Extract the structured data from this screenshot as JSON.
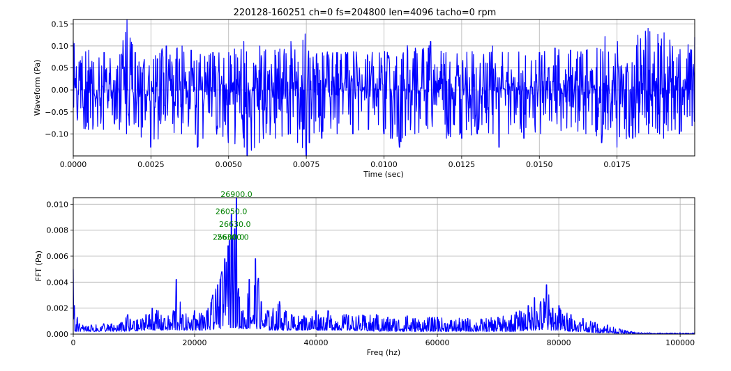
{
  "chart_data": [
    {
      "type": "line",
      "title": "220128-160251 ch=0 fs=204800 len=4096 tacho=0 rpm",
      "xlabel": "Time (sec)",
      "ylabel": "Waveform (Pa)",
      "xlim": [
        0,
        0.02
      ],
      "ylim": [
        -0.15,
        0.16
      ],
      "xticks": [
        "0.0000",
        "0.0025",
        "0.0050",
        "0.0075",
        "0.0100",
        "0.0125",
        "0.0150",
        "0.0175"
      ],
      "yticks": [
        "−0.10",
        "−0.05",
        "0.00",
        "0.05",
        "0.10",
        "0.15"
      ],
      "grid": true,
      "color": "#0000ff",
      "series": [
        {
          "x": [
            0,
            0.0005,
            0.001,
            0.0015,
            0.00172,
            0.002,
            0.0025,
            0.003,
            0.0035,
            0.0038,
            0.004,
            0.0045,
            0.005,
            0.0055,
            0.0056,
            0.006,
            0.0065,
            0.007,
            0.0075,
            0.0076,
            0.008,
            0.0085,
            0.009,
            0.0095,
            0.01,
            0.0105,
            0.011,
            0.0115,
            0.012,
            0.0125,
            0.013,
            0.0135,
            0.0137,
            0.014,
            0.0145,
            0.015,
            0.0155,
            0.016,
            0.0165,
            0.017,
            0.0175,
            0.018,
            0.0185,
            0.019,
            0.0195,
            0.02
          ],
          "upper": [
            0.11,
            0.09,
            0.085,
            0.08,
            0.16,
            0.085,
            0.08,
            0.1,
            0.1,
            0.09,
            0.08,
            0.085,
            0.085,
            0.11,
            0.08,
            0.1,
            0.09,
            0.11,
            0.13,
            0.1,
            0.09,
            0.085,
            0.09,
            0.09,
            0.1,
            0.11,
            0.095,
            0.11,
            0.085,
            0.09,
            0.1,
            0.1,
            0.1,
            0.085,
            0.09,
            0.085,
            0.095,
            0.09,
            0.09,
            0.13,
            0.11,
            0.12,
            0.14,
            0.13,
            0.1,
            0.12
          ],
          "lower": [
            -0.09,
            -0.09,
            -0.095,
            -0.09,
            -0.1,
            -0.095,
            -0.13,
            -0.1,
            -0.1,
            -0.09,
            -0.13,
            -0.11,
            -0.12,
            -0.13,
            -0.15,
            -0.12,
            -0.11,
            -0.1,
            -0.15,
            -0.12,
            -0.11,
            -0.1,
            -0.1,
            -0.09,
            -0.1,
            -0.13,
            -0.1,
            -0.095,
            -0.11,
            -0.11,
            -0.1,
            -0.1,
            -0.13,
            -0.1,
            -0.11,
            -0.12,
            -0.1,
            -0.1,
            -0.1,
            -0.12,
            -0.13,
            -0.11,
            -0.1,
            -0.11,
            -0.1,
            -0.09
          ]
        }
      ]
    },
    {
      "type": "line",
      "xlabel": "Freq (hz)",
      "ylabel": "FFT (Pa)",
      "xlim": [
        0,
        102400
      ],
      "ylim": [
        0,
        0.0105
      ],
      "xticks": [
        "0",
        "20000",
        "40000",
        "60000",
        "80000",
        "100000"
      ],
      "yticks": [
        "0.000",
        "0.002",
        "0.004",
        "0.006",
        "0.008",
        "0.010"
      ],
      "grid": true,
      "color": "#0000ff",
      "series": [
        {
          "x": [
            0,
            200,
            1000,
            3000,
            5000,
            8000,
            9000,
            10000,
            12000,
            13000,
            14000,
            15000,
            16500,
            17000,
            18000,
            20000,
            22000,
            23000,
            23800,
            24500,
            25000,
            25500,
            25700,
            26050,
            26300,
            26630,
            26900,
            27200,
            28000,
            29000,
            30000,
            30500,
            31000,
            32000,
            34000,
            36000,
            38000,
            40000,
            42000,
            45000,
            50000,
            55000,
            60000,
            65000,
            70000,
            73000,
            75000,
            76000,
            77000,
            78000,
            79000,
            80000,
            82000,
            84000,
            86000,
            88000,
            90000,
            92000,
            95000,
            100000,
            102400
          ],
          "y": [
            0.005,
            0.0022,
            0.0008,
            0.0007,
            0.0008,
            0.0009,
            0.0015,
            0.001,
            0.0015,
            0.002,
            0.0018,
            0.0012,
            0.0018,
            0.0042,
            0.0015,
            0.0018,
            0.0018,
            0.003,
            0.0038,
            0.0048,
            0.0058,
            0.0068,
            0.0072,
            0.0092,
            0.0074,
            0.0081,
            0.0105,
            0.0035,
            0.0018,
            0.0042,
            0.0058,
            0.0043,
            0.0025,
            0.0018,
            0.0025,
            0.0015,
            0.0014,
            0.0018,
            0.0018,
            0.0015,
            0.0015,
            0.0014,
            0.0013,
            0.0012,
            0.0013,
            0.0017,
            0.0022,
            0.0028,
            0.0025,
            0.0038,
            0.002,
            0.0022,
            0.0015,
            0.0012,
            0.0009,
            0.0007,
            0.0004,
            0.0002,
            0.0001,
            0.0001,
            0.0001
          ],
          "lower": [
            0.0003,
            0.0002,
            0.0002,
            0.0002,
            0.0002,
            0.0002,
            0.0002,
            0.0002,
            0.0003,
            0.0003,
            0.0003,
            0.0003,
            0.0003,
            0.0003,
            0.0003,
            0.0003,
            0.0003,
            0.0003,
            0.0004,
            0.0004,
            0.0004,
            0.0005,
            0.0005,
            0.0005,
            0.0005,
            0.0005,
            0.0005,
            0.0004,
            0.0004,
            0.0004,
            0.0004,
            0.0004,
            0.0004,
            0.0003,
            0.0003,
            0.0003,
            0.0003,
            0.0003,
            0.0003,
            0.0003,
            0.0002,
            0.0002,
            0.0002,
            0.0002,
            0.0002,
            0.0002,
            0.0003,
            0.0003,
            0.0003,
            0.0003,
            0.0003,
            0.0003,
            0.0002,
            0.0002,
            0.0001,
            0.0001,
            5e-05,
            3e-05,
            2e-05,
            1e-05,
            1e-05
          ]
        }
      ],
      "annotations": [
        {
          "text": "26900.0",
          "x": 26900,
          "y": 0.0105,
          "color": "#008000"
        },
        {
          "text": "26050.0",
          "x": 26050,
          "y": 0.0092,
          "color": "#008000"
        },
        {
          "text": "26630.0",
          "x": 26630,
          "y": 0.0082,
          "color": "#008000"
        },
        {
          "text": "25600.0",
          "x": 25600,
          "y": 0.0072,
          "color": "#008000"
        },
        {
          "text": "26300.0",
          "x": 26300,
          "y": 0.0072,
          "color": "#008000"
        }
      ]
    }
  ]
}
